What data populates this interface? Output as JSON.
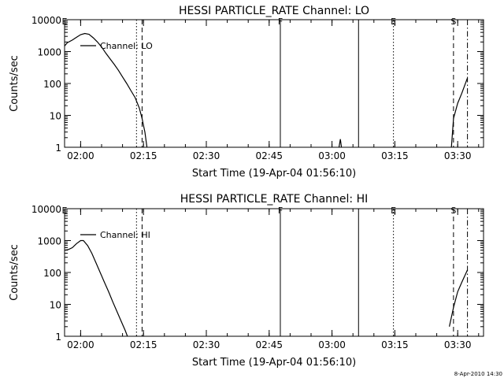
{
  "footer": {
    "stamp": "8-Apr-2010 14:30"
  },
  "colors": {
    "line": "#000000",
    "background": "#ffffff"
  },
  "chart_data": [
    {
      "type": "line",
      "title": "HESSI PARTICLE_RATE Channel: LO",
      "xlabel": "Start Time (19-Apr-04 01:56:10)",
      "ylabel": "Counts/sec",
      "y_scale": "log",
      "ylim": [
        1,
        10000
      ],
      "xlim": [
        "01:56:10",
        "03:36:10"
      ],
      "x_ticks": [
        "02:00",
        "02:15",
        "02:30",
        "02:45",
        "03:00",
        "03:15",
        "03:30"
      ],
      "y_ticks": [
        "1",
        "10",
        "100",
        "1000",
        "10000"
      ],
      "legend": {
        "entries": [
          "Channel: LO"
        ],
        "placement": "top-left"
      },
      "markers": [
        {
          "label": "E",
          "time": "01:56:10",
          "style": "none"
        },
        {
          "label": "",
          "time": "02:13:20",
          "style": "dotted"
        },
        {
          "label": "",
          "time": "02:14:40",
          "style": "dashed"
        },
        {
          "label": "F",
          "time": "02:47:40",
          "style": "solid"
        },
        {
          "label": "",
          "time": "03:06:20",
          "style": "solid"
        },
        {
          "label": "E",
          "time": "03:14:40",
          "style": "dotted"
        },
        {
          "label": "S",
          "time": "03:29:00",
          "style": "dashed"
        },
        {
          "label": "",
          "time": "03:32:20",
          "style": "dashdot"
        }
      ],
      "series": [
        {
          "name": "Channel: LO",
          "segments": [
            [
              [
                "01:56:10",
                1500
              ],
              [
                "01:56:50",
                1900
              ],
              [
                "01:58:00",
                2300
              ],
              [
                "01:59:00",
                2800
              ],
              [
                "02:00:00",
                3400
              ],
              [
                "02:01:00",
                3700
              ],
              [
                "02:02:00",
                3500
              ],
              [
                "02:03:00",
                2700
              ],
              [
                "02:04:00",
                2000
              ],
              [
                "02:05:00",
                1400
              ],
              [
                "02:06:00",
                900
              ],
              [
                "02:07:00",
                600
              ],
              [
                "02:08:00",
                400
              ],
              [
                "02:09:00",
                260
              ],
              [
                "02:10:00",
                160
              ],
              [
                "02:11:00",
                100
              ],
              [
                "02:12:00",
                60
              ],
              [
                "02:13:00",
                36
              ],
              [
                "02:14:00",
                17
              ],
              [
                "02:14:40",
                8
              ],
              [
                "02:15:20",
                3
              ],
              [
                "02:15:50",
                1
              ]
            ],
            [
              [
                "03:01:40",
                1
              ],
              [
                "03:02:00",
                1.8
              ],
              [
                "03:02:15",
                1
              ]
            ],
            [
              [
                "03:28:30",
                1
              ],
              [
                "03:29:00",
                8
              ],
              [
                "03:30:00",
                24
              ],
              [
                "03:31:00",
                50
              ],
              [
                "03:32:20",
                150
              ]
            ]
          ]
        }
      ]
    },
    {
      "type": "line",
      "title": "HESSI PARTICLE_RATE Channel: HI",
      "xlabel": "Start Time (19-Apr-04 01:56:10)",
      "ylabel": "Counts/sec",
      "y_scale": "log",
      "ylim": [
        1,
        10000
      ],
      "xlim": [
        "01:56:10",
        "03:36:10"
      ],
      "x_ticks": [
        "02:00",
        "02:15",
        "02:30",
        "02:45",
        "03:00",
        "03:15",
        "03:30"
      ],
      "y_ticks": [
        "1",
        "10",
        "100",
        "1000",
        "10000"
      ],
      "legend": {
        "entries": [
          "Channel: HI"
        ],
        "placement": "top-left"
      },
      "markers": [
        {
          "label": "E",
          "time": "01:56:10",
          "style": "none"
        },
        {
          "label": "",
          "time": "02:13:20",
          "style": "dotted"
        },
        {
          "label": "",
          "time": "02:14:40",
          "style": "dashed"
        },
        {
          "label": "F",
          "time": "02:47:40",
          "style": "solid"
        },
        {
          "label": "",
          "time": "03:06:20",
          "style": "solid"
        },
        {
          "label": "E",
          "time": "03:14:40",
          "style": "dotted"
        },
        {
          "label": "S",
          "time": "03:29:00",
          "style": "dashed"
        },
        {
          "label": "",
          "time": "03:32:20",
          "style": "dashdot"
        }
      ],
      "series": [
        {
          "name": "Channel: HI",
          "segments": [
            [
              [
                "01:56:10",
                500
              ],
              [
                "01:57:00",
                520
              ],
              [
                "01:58:00",
                600
              ],
              [
                "01:59:00",
                800
              ],
              [
                "02:00:00",
                1000
              ],
              [
                "02:00:40",
                1000
              ],
              [
                "02:01:40",
                700
              ],
              [
                "02:02:40",
                400
              ],
              [
                "02:03:40",
                200
              ],
              [
                "02:04:40",
                100
              ],
              [
                "02:05:40",
                50
              ],
              [
                "02:06:40",
                25
              ],
              [
                "02:07:40",
                12
              ],
              [
                "02:08:40",
                6
              ],
              [
                "02:09:40",
                3
              ],
              [
                "02:10:40",
                1.5
              ],
              [
                "02:11:10",
                1
              ]
            ],
            [
              [
                "03:28:00",
                2
              ],
              [
                "03:29:00",
                8
              ],
              [
                "03:30:00",
                25
              ],
              [
                "03:31:00",
                50
              ],
              [
                "03:32:20",
                120
              ]
            ]
          ]
        }
      ]
    }
  ]
}
